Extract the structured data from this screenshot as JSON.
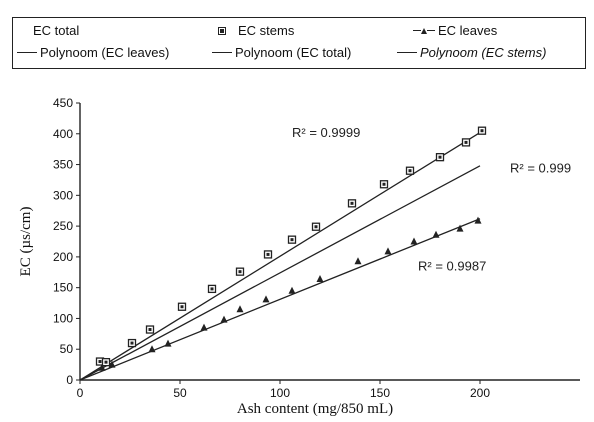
{
  "legend": {
    "row1": [
      {
        "label": "EC total",
        "marker": "none"
      },
      {
        "label": "EC stems",
        "marker": "square"
      },
      {
        "label": "EC leaves",
        "marker": "triangle-line"
      }
    ],
    "row2": [
      {
        "label": "Polynoom (EC leaves)",
        "marker": "line"
      },
      {
        "label": "Polynoom (EC total)",
        "marker": "line"
      },
      {
        "label": "Polynoom (EC stems)",
        "marker": "line"
      }
    ]
  },
  "chart_data": {
    "type": "scatter",
    "title": "",
    "xlabel": "Ash content (mg/850 mL)",
    "ylabel": "EC (µs/cm)",
    "xlim": [
      0,
      250
    ],
    "ylim": [
      0,
      450
    ],
    "xticks": [
      0,
      50,
      100,
      150,
      200
    ],
    "yticks": [
      0,
      50,
      100,
      150,
      200,
      250,
      300,
      350,
      400,
      450
    ],
    "grid": false,
    "legend_position": "top",
    "series": [
      {
        "name": "EC stems",
        "marker": "square",
        "x": [
          10,
          13,
          26,
          35,
          51,
          66,
          80,
          94,
          106,
          118,
          136,
          152,
          165,
          180,
          193,
          201
        ],
        "y": [
          30,
          29,
          60,
          82,
          119,
          148,
          176,
          204,
          228,
          249,
          287,
          318,
          340,
          362,
          386,
          405
        ]
      },
      {
        "name": "EC leaves",
        "marker": "triangle",
        "x": [
          11,
          16,
          36,
          44,
          62,
          72,
          80,
          93,
          106,
          120,
          139,
          154,
          167,
          178,
          190,
          199
        ],
        "y": [
          20,
          25,
          50,
          59,
          85,
          98,
          115,
          131,
          145,
          164,
          193,
          209,
          225,
          236,
          246,
          259
        ]
      },
      {
        "name": "Polynoom (EC stems)",
        "marker": "line",
        "x": [
          0,
          200
        ],
        "y": [
          0,
          402
        ],
        "r2_label": "R² = 0.9999",
        "r2_at": [
          106,
          395
        ]
      },
      {
        "name": "Polynoom (EC total)",
        "marker": "line",
        "x": [
          0,
          200
        ],
        "y": [
          0,
          348
        ],
        "r2_label": "R² = 0.999",
        "r2_at": [
          215,
          337
        ]
      },
      {
        "name": "Polynoom (EC leaves)",
        "marker": "line",
        "x": [
          0,
          200
        ],
        "y": [
          0,
          262
        ],
        "r2_label": "R² = 0.9987",
        "r2_at": [
          169,
          178
        ]
      }
    ]
  }
}
